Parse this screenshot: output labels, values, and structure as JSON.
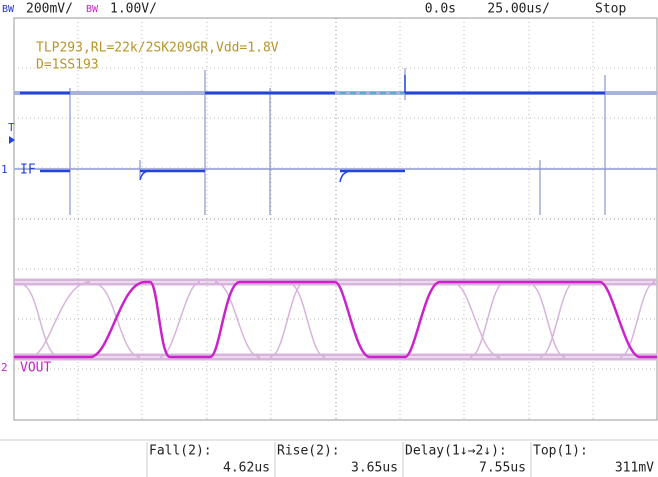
{
  "header": {
    "ch1_bw": "BW",
    "ch1_scale": "200mV/",
    "ch2_bw": "BW",
    "ch2_scale": "1.00V/",
    "delay": "0.0s",
    "timebase": "25.00us/",
    "status": "Stop"
  },
  "screen": {
    "annotation": [
      "TLP293,RL=22k/2SK209GR,Vdd=1.8V",
      "D=1SS193"
    ],
    "markers": {
      "trigger": "T",
      "ch1": "1",
      "ch1_label": "IF",
      "ch2": "2",
      "ch2_label": "VOUT"
    }
  },
  "measurements": [
    {
      "label": "Fall(2):",
      "value": "4.62us"
    },
    {
      "label": "Rise(2):",
      "value": "3.65us"
    },
    {
      "label": "Delay(1↓→2↓):",
      "value": "7.55us"
    },
    {
      "label": "Top(1):",
      "value": "311mV"
    }
  ]
}
